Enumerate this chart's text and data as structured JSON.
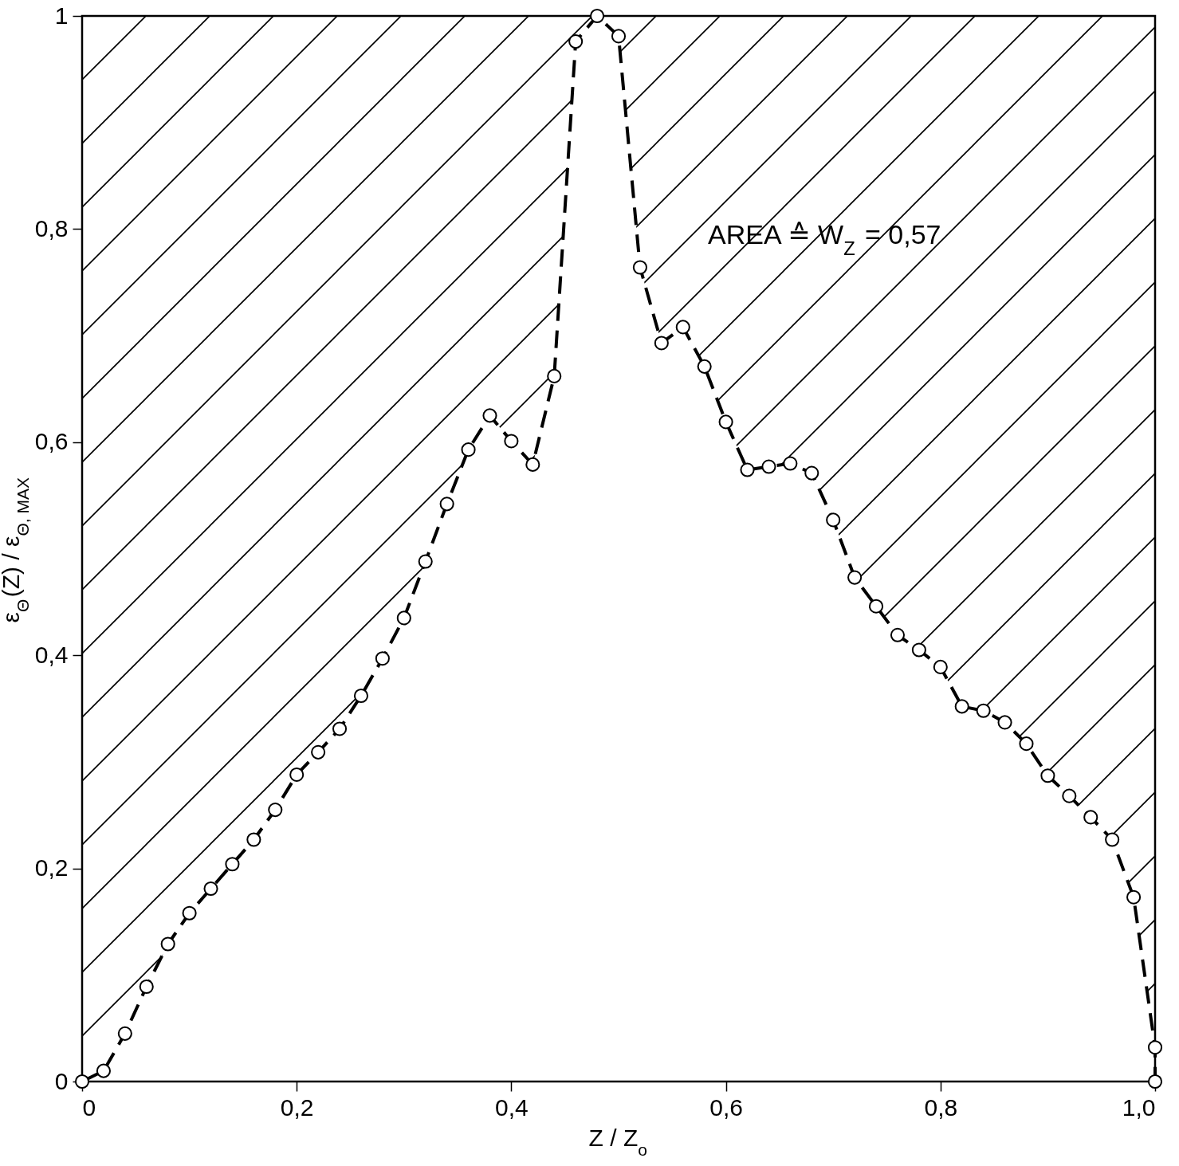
{
  "chart_data": {
    "type": "line",
    "xlabel": "Z / Z$_{o}$",
    "ylabel": "ε$_{Θ}$(Z) / ε$_{Θ, MAX}$",
    "annotations": [
      "AREA ≙ W$_{Z}$ = 0,57"
    ],
    "x": [
      0,
      0.02,
      0.04,
      0.06,
      0.08,
      0.1,
      0.12,
      0.14,
      0.16,
      0.18,
      0.2,
      0.22,
      0.24,
      0.26,
      0.28,
      0.3,
      0.32,
      0.34,
      0.36,
      0.38,
      0.4,
      0.42,
      0.44,
      0.46,
      0.48,
      0.5,
      0.52,
      0.54,
      0.56,
      0.58,
      0.6,
      0.62,
      0.64,
      0.66,
      0.68,
      0.7,
      0.72,
      0.74,
      0.76,
      0.78,
      0.8,
      0.82,
      0.84,
      0.86,
      0.88,
      0.9,
      0.92,
      0.94,
      0.96,
      0.98,
      1.0,
      1.0
    ],
    "series": [
      {
        "color": "#000000",
        "values": [
          0,
          0.01,
          0.045,
          0.089,
          0.129,
          0.158,
          0.181,
          0.204,
          0.227,
          0.255,
          0.288,
          0.309,
          0.331,
          0.362,
          0.397,
          0.435,
          0.488,
          0.542,
          0.593,
          0.625,
          0.601,
          0.579,
          0.662,
          0.976,
          1.0,
          0.981,
          0.764,
          0.693,
          0.708,
          0.671,
          0.619,
          0.574,
          0.577,
          0.58,
          0.571,
          0.527,
          0.473,
          0.446,
          0.419,
          0.405,
          0.389,
          0.352,
          0.348,
          0.337,
          0.317,
          0.287,
          0.268,
          0.248,
          0.227,
          0.173,
          0.032,
          0
        ],
        "lower": [
          0,
          0.01,
          0.045,
          0.089,
          0.129,
          0.158,
          0.181,
          0.204,
          0.227,
          0.255,
          0.288,
          0.309,
          0.331,
          0.362,
          0.397,
          0.435,
          0.488,
          0.542,
          0.593,
          0.625,
          0.601,
          0.579,
          0.662,
          0.976,
          1.0,
          0.981,
          0.764,
          0.693,
          0.708,
          0.671,
          0.619,
          0.574,
          0.577,
          0.58,
          0.571,
          0.527,
          0.473,
          0.446,
          0.419,
          0.405,
          0.389,
          0.352,
          0.348,
          0.337,
          0.317,
          0.287,
          0.268,
          0.248,
          0.227,
          0.173,
          0.032,
          0
        ],
        "upper": [
          1,
          1,
          1,
          1,
          1,
          1,
          1,
          1,
          1,
          1,
          1,
          1,
          1,
          1,
          1,
          1,
          1,
          1,
          1,
          1,
          1,
          1,
          1,
          1,
          1,
          1,
          1,
          1,
          1,
          1,
          1,
          1,
          1,
          1,
          1,
          1,
          1,
          1,
          1,
          1,
          1,
          1,
          1,
          1,
          1,
          1,
          1,
          1,
          1,
          1,
          1,
          1
        ]
      }
    ],
    "xlim": [
      0,
      1.0
    ],
    "xticks": [
      0,
      {
        "value": 0.2,
        "label": "0,2"
      },
      {
        "value": 0.4,
        "label": "0,4"
      },
      {
        "value": 0.6,
        "label": "0,6"
      },
      {
        "value": 0.8,
        "label": "0,8"
      },
      {
        "value": 1.0,
        "label": "1,0"
      }
    ],
    "ylim": [
      0,
      1
    ],
    "yticks": [
      0,
      {
        "value": 0.2,
        "label": "0,2"
      },
      {
        "value": 0.4,
        "label": "0,4"
      },
      {
        "value": 0.6,
        "label": "0,6"
      },
      {
        "value": 0.8,
        "label": "0,8"
      },
      1
    ],
    "marker": "circle",
    "line_style": "dashed"
  }
}
